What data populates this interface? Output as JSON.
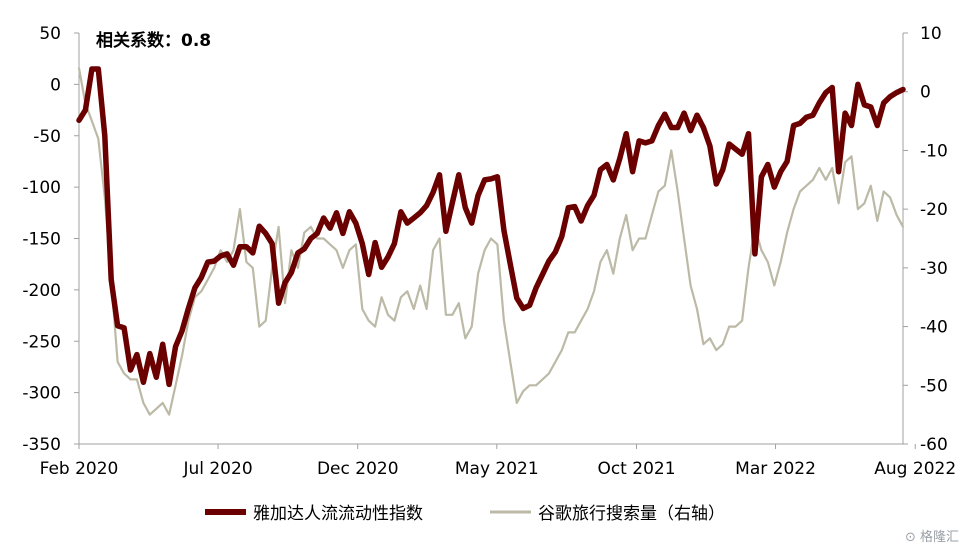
{
  "chart_data": {
    "type": "line",
    "annotation": "相关系数：0.8",
    "x_tick_labels": [
      "Feb 2020",
      "Jul 2020",
      "Dec 2020",
      "May 2021",
      "Oct 2021",
      "Mar 2022",
      "Aug 2022"
    ],
    "x_tick_weeks": [
      0,
      21.6,
      43.3,
      64.9,
      86.6,
      108.2,
      129.9
    ],
    "ylim_left": [
      -350,
      50
    ],
    "yticks_left": [
      50,
      0,
      -50,
      -100,
      -150,
      -200,
      -250,
      -300,
      -350
    ],
    "ylim_right": [
      -60,
      10
    ],
    "yticks_right": [
      10,
      0,
      -10,
      -20,
      -30,
      -40,
      -50,
      -60
    ],
    "grid": false,
    "legend_position": "bottom",
    "series": [
      {
        "name": "雅加达人流流动性指数",
        "axis": "left",
        "color": "#6b0000",
        "values": [
          -35,
          -25,
          15,
          15,
          -50,
          -190,
          -235,
          -237,
          -278,
          -263,
          -290,
          -262,
          -285,
          -253,
          -292,
          -255,
          -240,
          -218,
          -198,
          -188,
          -173,
          -172,
          -167,
          -165,
          -176,
          -158,
          -158,
          -164,
          -138,
          -145,
          -155,
          -213,
          -193,
          -183,
          -164,
          -160,
          -150,
          -145,
          -130,
          -140,
          -125,
          -145,
          -124,
          -135,
          -155,
          -185,
          -154,
          -178,
          -168,
          -155,
          -124,
          -135,
          -130,
          -125,
          -118,
          -105,
          -88,
          -143,
          -115,
          -88,
          -120,
          -135,
          -108,
          -93,
          -92,
          -90,
          -142,
          -175,
          -208,
          -218,
          -215,
          -198,
          -185,
          -172,
          -163,
          -148,
          -120,
          -119,
          -133,
          -118,
          -108,
          -83,
          -78,
          -93,
          -72,
          -48,
          -85,
          -55,
          -57,
          -55,
          -40,
          -29,
          -42,
          -42,
          -28,
          -45,
          -30,
          -42,
          -60,
          -97,
          -83,
          -58,
          -63,
          -68,
          -48,
          -165,
          -90,
          -78,
          -100,
          -85,
          -75,
          -40,
          -38,
          -32,
          -30,
          -18,
          -8,
          -3,
          -85,
          -28,
          -40,
          0,
          -20,
          -22,
          -40,
          -18,
          -12,
          -8,
          -5
        ]
      },
      {
        "name": "谷歌旅行搜索量（右轴）",
        "axis": "right",
        "color": "#bcbaa6",
        "values": [
          4,
          -2,
          -5,
          -8,
          -18,
          -32,
          -46,
          -48,
          -49,
          -49,
          -53,
          -55,
          -54,
          -53,
          -55,
          -50,
          -45,
          -39,
          -35,
          -34,
          -32,
          -30,
          -27,
          -29,
          -27,
          -20,
          -29,
          -30,
          -40,
          -39,
          -30,
          -23,
          -36,
          -27,
          -30,
          -24,
          -23,
          -25,
          -25,
          -26,
          -27,
          -30,
          -27,
          -26,
          -37,
          -39,
          -40,
          -35,
          -38,
          -39,
          -35,
          -34,
          -37,
          -33,
          -37,
          -27,
          -25,
          -38,
          -38,
          -36,
          -42,
          -40,
          -31,
          -27,
          -25,
          -26,
          -39,
          -46,
          -53,
          -51,
          -50,
          -50,
          -49,
          -48,
          -46,
          -44,
          -41,
          -41,
          -39,
          -37,
          -34,
          -29,
          -27,
          -31,
          -25,
          -21,
          -27,
          -25,
          -25,
          -21,
          -17,
          -16,
          -10,
          -17,
          -25,
          -33,
          -37,
          -43,
          -42,
          -44,
          -43,
          -40,
          -40,
          -39,
          -30,
          -23,
          -27,
          -29,
          -33,
          -29,
          -24,
          -20,
          -17,
          -16,
          -15,
          -13,
          -15,
          -13,
          -19,
          -12,
          -11,
          -20,
          -19,
          -16,
          -22,
          -17,
          -18,
          -21,
          -23
        ]
      }
    ]
  },
  "legend": {
    "items": [
      {
        "label": "雅加达人流流动性指数",
        "color": "#6b0000"
      },
      {
        "label": "谷歌旅行搜索量（右轴）",
        "color": "#bcbaa6"
      }
    ]
  }
}
